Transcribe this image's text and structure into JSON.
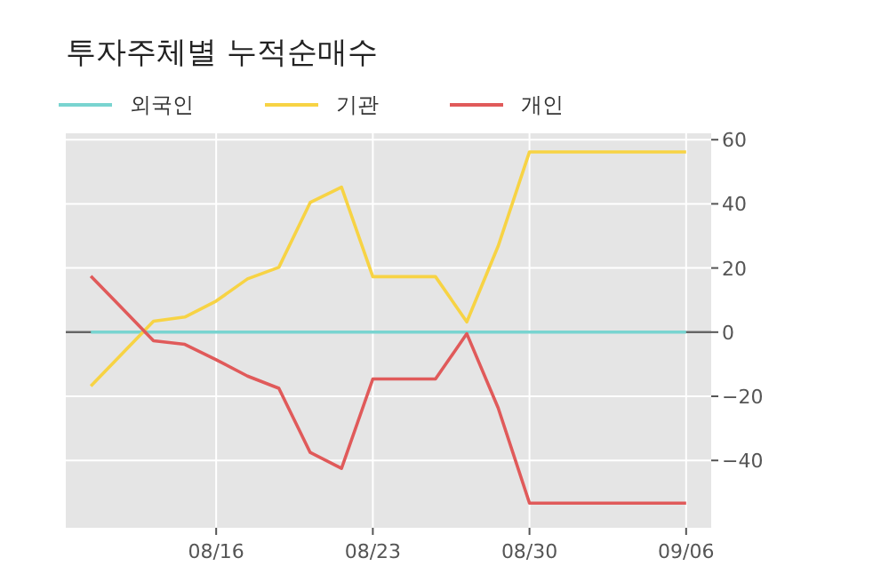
{
  "chart_data": {
    "type": "line",
    "title": "투자주체별 누적순매수",
    "categories": [
      null,
      null,
      null,
      null,
      "08/16",
      null,
      null,
      null,
      null,
      "08/23",
      null,
      null,
      null,
      null,
      "08/30",
      null,
      null,
      null,
      null,
      "09/06"
    ],
    "series": [
      {
        "name": "외국인",
        "color": "#79d4d0",
        "values": [
          0,
          0,
          0,
          0,
          0,
          0,
          0,
          0,
          0,
          0,
          0,
          0,
          0,
          0,
          0,
          0,
          0,
          0,
          0,
          0
        ]
      },
      {
        "name": "기관",
        "color": "#f7d344",
        "values": [
          -16.8,
          -6.7,
          3.4,
          4.7,
          9.7,
          16.6,
          20.2,
          40.4,
          45.2,
          17.3,
          17.3,
          17.3,
          3.2,
          26.8,
          56.2,
          56.2,
          56.2,
          56.2,
          56.2,
          56.2
        ]
      },
      {
        "name": "개인",
        "color": "#e05a5a",
        "values": [
          17.5,
          7.4,
          -2.7,
          -3.8,
          -8.6,
          -13.7,
          -17.5,
          -37.5,
          -42.5,
          -14.6,
          -14.6,
          -14.6,
          -0.5,
          -23.6,
          -53.3,
          -53.3,
          -53.3,
          -53.3,
          -53.3,
          -53.3
        ]
      }
    ],
    "ylim": [
      -61,
      62
    ],
    "yticks": [
      -40,
      -20,
      0,
      20,
      40,
      60
    ],
    "ref_lines": [
      {
        "axis": "y",
        "value": 0,
        "color": "#666666"
      }
    ],
    "grid": true,
    "legend": "top left"
  }
}
